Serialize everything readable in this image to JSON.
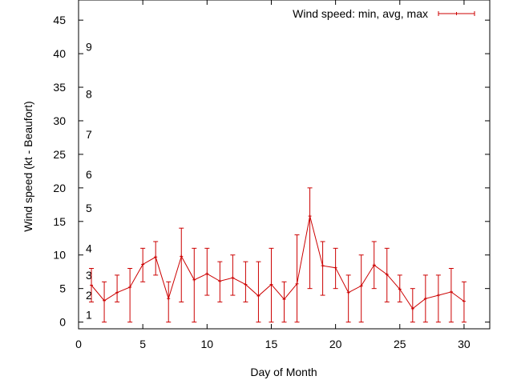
{
  "chart_data": {
    "type": "line",
    "xlabel": "Day of Month",
    "ylabel": "Wind speed (kt - Beaufort)",
    "xlim": [
      0,
      32
    ],
    "ylim": [
      -1,
      48
    ],
    "x_ticks": [
      "0",
      "5",
      "10",
      "15",
      "20",
      "25",
      "30"
    ],
    "y_ticks": [
      "0",
      "5",
      "10",
      "15",
      "20",
      "25",
      "30",
      "35",
      "40",
      "45"
    ],
    "grid": false,
    "legend_position": "top-right",
    "series": [
      {
        "name": "Wind speed: min, avg, max",
        "color": "#cc0000",
        "x": [
          1,
          2,
          3,
          4,
          5,
          6,
          7,
          8,
          9,
          10,
          11,
          12,
          13,
          14,
          15,
          16,
          17,
          18,
          19,
          20,
          21,
          22,
          23,
          24,
          25,
          26,
          27,
          28,
          29,
          30
        ],
        "avg": [
          5.5,
          3.2,
          4.4,
          5.2,
          8.6,
          9.7,
          3.5,
          9.8,
          6.3,
          7.2,
          6.1,
          6.6,
          5.6,
          3.9,
          5.6,
          3.4,
          5.7,
          15.8,
          8.4,
          8.1,
          4.4,
          5.4,
          8.5,
          7.1,
          4.9,
          2.0,
          3.5,
          4.0,
          4.5,
          3.1
        ],
        "min": [
          3,
          0,
          3,
          0,
          6,
          7,
          0,
          3,
          0,
          4,
          3,
          4,
          3,
          0,
          0,
          0,
          0,
          5,
          4,
          5,
          0,
          0,
          5,
          3,
          3,
          0,
          0,
          0,
          0,
          0
        ],
        "max": [
          8,
          6,
          7,
          8,
          11,
          12,
          6,
          14,
          11,
          11,
          9,
          10,
          9,
          9,
          11,
          6,
          13,
          20,
          12,
          11,
          7,
          10,
          12,
          11,
          7,
          5,
          7,
          7,
          8,
          6
        ]
      }
    ],
    "beaufort_annotations": [
      {
        "label": "1",
        "y": 1.1
      },
      {
        "label": "2",
        "y": 4.0
      },
      {
        "label": "3",
        "y": 7.0
      },
      {
        "label": "4",
        "y": 11.0
      },
      {
        "label": "5",
        "y": 17.0
      },
      {
        "label": "6",
        "y": 22.0
      },
      {
        "label": "7",
        "y": 28.0
      },
      {
        "label": "8",
        "y": 34.0
      },
      {
        "label": "9",
        "y": 41.0
      }
    ]
  }
}
